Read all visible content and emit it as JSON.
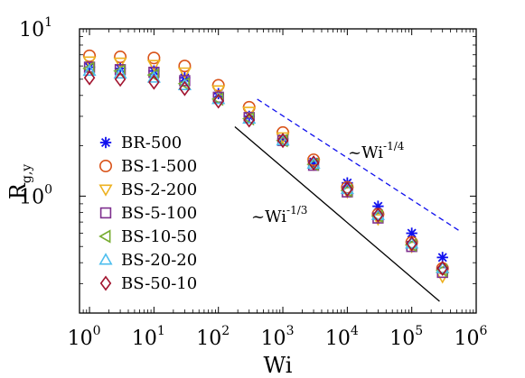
{
  "chart_data": {
    "type": "scatter",
    "xlabel": "Wi",
    "ylabel": {
      "main": "R",
      "sub": "g,y"
    },
    "xscale": "log",
    "yscale": "log",
    "xlim": [
      0.7,
      1000000
    ],
    "ylim": [
      0.2,
      10
    ],
    "legend_position": "left",
    "x_ticks": [
      {
        "value": 1,
        "base": "10",
        "exp": "0"
      },
      {
        "value": 10,
        "base": "10",
        "exp": "1"
      },
      {
        "value": 100,
        "base": "10",
        "exp": "2"
      },
      {
        "value": 1000,
        "base": "10",
        "exp": "3"
      },
      {
        "value": 10000,
        "base": "10",
        "exp": "4"
      },
      {
        "value": 100000,
        "base": "10",
        "exp": "5"
      },
      {
        "value": 1000000,
        "base": "10",
        "exp": "6"
      }
    ],
    "y_ticks": [
      {
        "value": 1,
        "base": "10",
        "exp": "0"
      },
      {
        "value": 10,
        "base": "10",
        "exp": "1"
      }
    ],
    "x": [
      1,
      3,
      10,
      30,
      100,
      300,
      1000,
      3000,
      10000,
      30000,
      100000,
      300000
    ],
    "series": [
      {
        "name": "BR-500",
        "marker": "asterisk",
        "color": "#1010ee",
        "values": [
          5.9,
          5.8,
          5.6,
          5.1,
          4.1,
          3.0,
          2.2,
          1.6,
          1.2,
          0.87,
          0.6,
          0.43
        ]
      },
      {
        "name": "BS-1-500",
        "marker": "circle",
        "color": "#d95319",
        "values": [
          6.9,
          6.8,
          6.7,
          6.0,
          4.6,
          3.4,
          2.4,
          1.65,
          1.13,
          0.78,
          0.53,
          0.37
        ]
      },
      {
        "name": "BS-2-200",
        "marker": "triangle-down",
        "color": "#edb120",
        "values": [
          6.4,
          6.3,
          6.1,
          5.5,
          4.3,
          3.2,
          2.25,
          1.55,
          1.06,
          0.73,
          0.5,
          0.33
        ]
      },
      {
        "name": "BS-5-100",
        "marker": "square",
        "color": "#7e2f8e",
        "values": [
          5.9,
          5.7,
          5.5,
          4.9,
          3.9,
          2.95,
          2.15,
          1.53,
          1.06,
          0.74,
          0.5,
          0.35
        ]
      },
      {
        "name": "BS-10-50",
        "marker": "triangle-left",
        "color": "#77ac30",
        "values": [
          5.8,
          5.6,
          5.3,
          4.7,
          3.8,
          2.9,
          2.15,
          1.55,
          1.08,
          0.76,
          0.51,
          0.36
        ]
      },
      {
        "name": "BS-20-20",
        "marker": "triangle-up",
        "color": "#4dbeee",
        "values": [
          5.6,
          5.4,
          5.1,
          4.6,
          3.8,
          2.9,
          2.15,
          1.56,
          1.1,
          0.77,
          0.52,
          0.37
        ]
      },
      {
        "name": "BS-50-10",
        "marker": "diamond",
        "color": "#a2142f",
        "values": [
          5.1,
          5.0,
          4.8,
          4.4,
          3.7,
          2.85,
          2.15,
          1.58,
          1.1,
          0.77,
          0.52,
          0.37
        ]
      }
    ],
    "reference_lines": [
      {
        "label_base": "~Wi",
        "label_exp": "-1/4",
        "style": "dashed",
        "color": "#1010ee",
        "x": [
          400,
          550000
        ],
        "y": [
          3.8,
          0.62
        ]
      },
      {
        "label_base": "~Wi",
        "label_exp": "-1/3",
        "style": "solid",
        "color": "#000000",
        "x": [
          180,
          270000
        ],
        "y": [
          2.6,
          0.235
        ]
      }
    ]
  }
}
